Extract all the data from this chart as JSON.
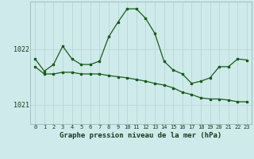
{
  "title": "Graphe pression niveau de la mer (hPa)",
  "background_color": "#ceeaea",
  "grid_color": "#b8d8d8",
  "line_color": "#1a5c1a",
  "x_labels": [
    "0",
    "1",
    "2",
    "3",
    "4",
    "5",
    "6",
    "7",
    "8",
    "9",
    "10",
    "11",
    "12",
    "13",
    "14",
    "15",
    "16",
    "17",
    "18",
    "19",
    "20",
    "21",
    "22",
    "23"
  ],
  "ylim": [
    1020.65,
    1022.85
  ],
  "yticks": [
    1021,
    1022
  ],
  "series1": [
    1021.82,
    1021.6,
    1021.72,
    1022.05,
    1021.82,
    1021.72,
    1021.72,
    1021.78,
    1022.22,
    1022.48,
    1022.72,
    1022.72,
    1022.55,
    1022.28,
    1021.78,
    1021.62,
    1021.55,
    1021.38,
    1021.42,
    1021.48,
    1021.68,
    1021.68,
    1021.82,
    1021.8
  ],
  "series2": [
    1021.68,
    1021.55,
    1021.55,
    1021.58,
    1021.58,
    1021.55,
    1021.55,
    1021.55,
    1021.52,
    1021.5,
    1021.48,
    1021.45,
    1021.42,
    1021.38,
    1021.35,
    1021.3,
    1021.22,
    1021.18,
    1021.12,
    1021.1,
    1021.1,
    1021.08,
    1021.05,
    1021.05
  ],
  "figsize": [
    3.2,
    2.0
  ],
  "dpi": 100
}
